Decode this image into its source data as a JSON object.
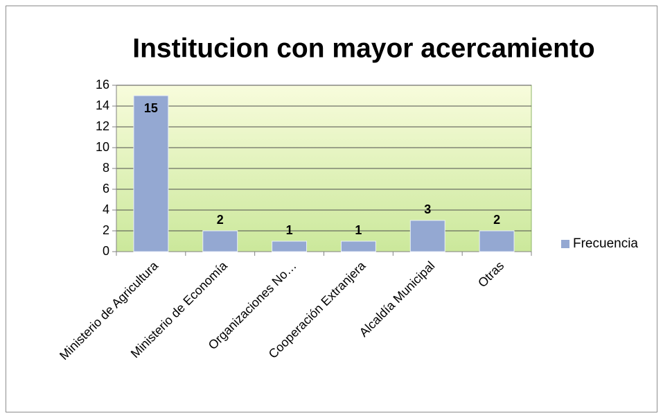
{
  "chart_data": {
    "type": "bar",
    "title": "Institucion con mayor acercamiento",
    "categories": [
      "Ministerio de Agricultura",
      "Ministerio de Economía",
      "Organizaciones No…",
      "Cooperación Extranjera",
      "Alcaldía Municipal",
      "Otras"
    ],
    "series": [
      {
        "name": "Frecuencia",
        "color": "#94a8d2",
        "values": [
          15,
          2,
          1,
          1,
          3,
          2
        ]
      }
    ],
    "ylim": [
      0,
      16
    ],
    "yticks": [
      0,
      2,
      4,
      6,
      8,
      10,
      12,
      14,
      16
    ],
    "grid": true,
    "legend": "right"
  }
}
